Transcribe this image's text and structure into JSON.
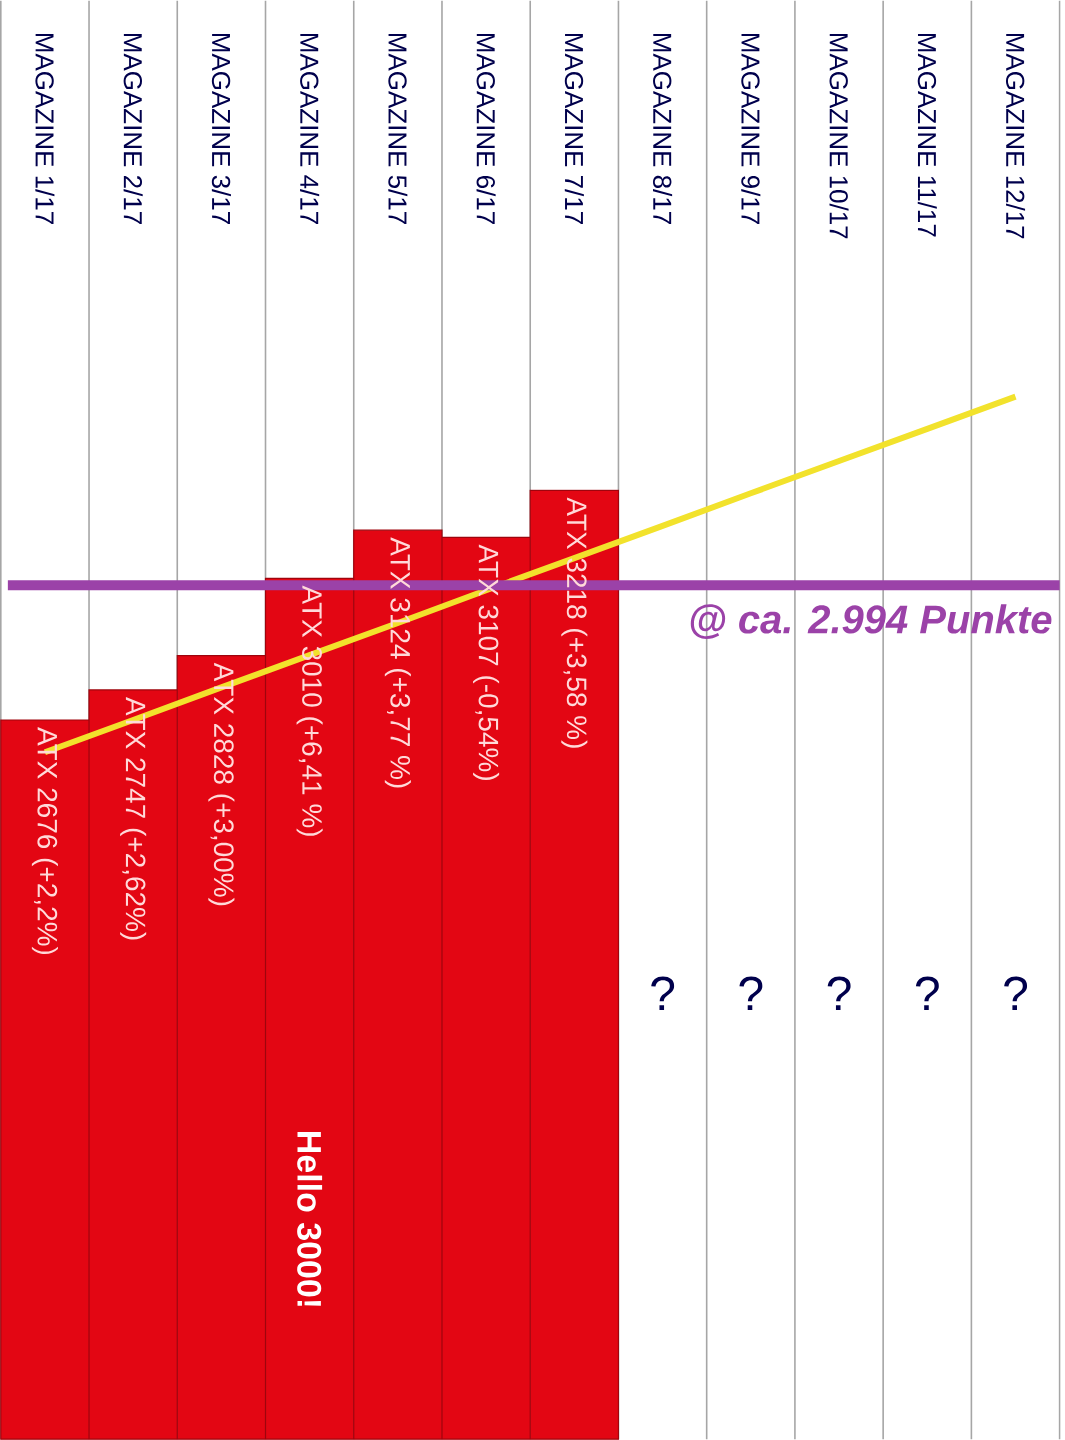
{
  "chart_data": {
    "type": "bar",
    "categories": [
      "MAGAZINE 1/17",
      "MAGAZINE 2/17",
      "MAGAZINE 3/17",
      "MAGAZINE 4/17",
      "MAGAZINE 5/17",
      "MAGAZINE 6/17",
      "MAGAZINE 7/17",
      "MAGAZINE 8/17",
      "MAGAZINE 9/17",
      "MAGAZINE 10/17",
      "MAGAZINE 11/17",
      "MAGAZINE 12/17"
    ],
    "series": [
      {
        "color": "#e30613",
        "values": [
          2676,
          2747,
          2828,
          3010,
          3124,
          3107,
          3218,
          null,
          null,
          null,
          null,
          null
        ],
        "value_labels": [
          "ATX 2676 (+2,2%)",
          "ATX 2747 (+2,62%)",
          "ATX 2828 (+3,00%)",
          "ATX 3010 (+6,41 %)",
          "ATX 3124 (+3,77 %)",
          "ATX 3107 (-0,54%)",
          "ATX 3218 (+3,58 %)",
          "?",
          "?",
          "?",
          "?",
          "?"
        ]
      },
      {
        "type": "line",
        "color": "#f2e22c",
        "values": [
          2600,
          2676,
          2753,
          2829,
          2905,
          2982,
          3058,
          3134,
          3211,
          3287,
          3363,
          3439
        ]
      }
    ],
    "ylim": [
      979,
      4373
    ],
    "tick_labels": "x",
    "grid": "x",
    "ref_lines": [
      {
        "axis": "y",
        "value": 2994,
        "label": "@ ca. 2.994 Punkte",
        "color": "#9b42a8"
      }
    ],
    "annotations": [
      "Hello 3000!"
    ]
  }
}
